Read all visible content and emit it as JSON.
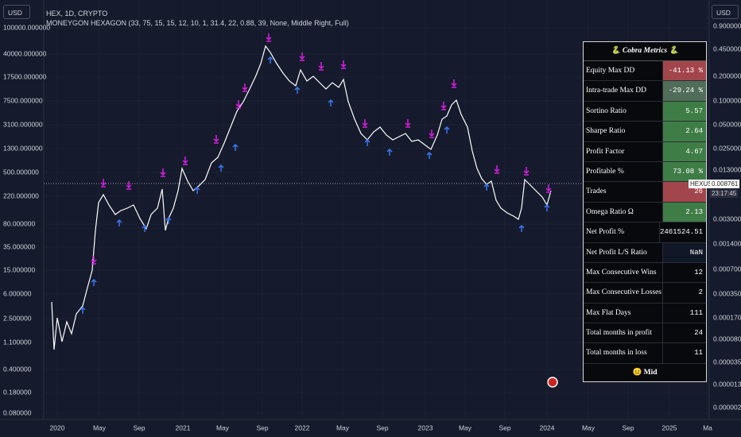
{
  "header": {
    "title": "HEX, 1D, CRYPTO",
    "indicator": "MONEYGON HEXAGON (33, 75, 15, 15, 12, 10, 1, 31.4, 22, 0.88, 39, None, Middle Right, Full)"
  },
  "left_axis": {
    "currency": "USD",
    "labels": [
      "100000.000000",
      "40000.000000",
      "17500.000000",
      "7500.000000",
      "3100.000000",
      "1300.000000",
      "500.000000",
      "220.000000",
      "80.000000",
      "35.000000",
      "15.000000",
      "6.000000",
      "2.500000",
      "1.100000",
      "0.400000",
      "0.180000",
      "0.080000"
    ]
  },
  "right_axis": {
    "currency": "USD",
    "labels": [
      "0.900000",
      "0.450000",
      "0.200000",
      "0.100000",
      "0.050000",
      "0.025000",
      "0.013000",
      "0.003000",
      "0.001400",
      "0.000700",
      "0.000350",
      "0.000170",
      "0.000080",
      "0.000035",
      "0.000013",
      "0.000002"
    ],
    "price_tag": {
      "symbol": "HEXUSD",
      "price": "0.008761",
      "countdown": "23:17:45"
    }
  },
  "x_axis": {
    "labels": [
      "2020",
      "May",
      "Sep",
      "2021",
      "May",
      "Sep",
      "2022",
      "May",
      "Sep",
      "2023",
      "May",
      "Sep",
      "2024",
      "May",
      "Sep",
      "2025",
      "Ma"
    ]
  },
  "metrics_table": {
    "title": "🐍 Cobra Metrics 🐍",
    "rows": [
      [
        "Equity Max DD",
        "-41.13 %"
      ],
      [
        "Intra-trade Max DD",
        "-29.24 %"
      ],
      [
        "Sortino Ratio",
        "5.57"
      ],
      [
        "Sharpe Ratio",
        "2.64"
      ],
      [
        "Profit Factor",
        "4.67"
      ],
      [
        "Profitable %",
        "73.08 %"
      ],
      [
        "Trades",
        "26"
      ],
      [
        "Omega Ratio Ω",
        "2.13"
      ],
      [
        "Net Profit %",
        "2461524.51 %"
      ],
      [
        "Net Profit L/S Ratio",
        "NaN"
      ],
      [
        "Max Consecutive Wins",
        "12"
      ],
      [
        "Max Consecutive Losses",
        "2"
      ],
      [
        "Max Flat Days",
        "111"
      ],
      [
        "Total months in profit",
        "24"
      ],
      [
        "Total months in loss",
        "11"
      ]
    ],
    "footer": "😐 Mid"
  }
}
